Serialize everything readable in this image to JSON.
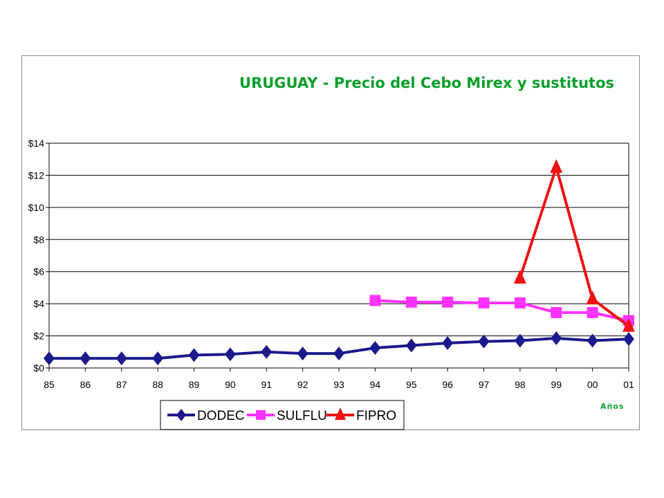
{
  "chart_data": {
    "type": "line",
    "title": "URUGUAY - Precio del Cebo Mirex y sustitutos",
    "xlabel": "Años",
    "ylabel": "",
    "categories": [
      "85",
      "86",
      "87",
      "88",
      "89",
      "90",
      "91",
      "92",
      "93",
      "94",
      "95",
      "96",
      "97",
      "98",
      "99",
      "00",
      "01"
    ],
    "yticks": [
      "$0",
      "$2",
      "$4",
      "$6",
      "$8",
      "$10",
      "$12",
      "$14"
    ],
    "ylim": [
      0,
      14
    ],
    "grid": true,
    "legend_position": "bottom",
    "series": [
      {
        "name": "DODEC",
        "color": "#1a1a8c",
        "marker": "diamond",
        "values": [
          0.6,
          0.6,
          0.6,
          0.6,
          0.8,
          0.85,
          1.0,
          0.9,
          0.9,
          1.25,
          1.4,
          1.55,
          1.65,
          1.7,
          1.85,
          1.7,
          1.8
        ]
      },
      {
        "name": "SULFLU",
        "color": "#ff33ff",
        "marker": "square",
        "values": [
          null,
          null,
          null,
          null,
          null,
          null,
          null,
          null,
          null,
          4.2,
          4.1,
          4.1,
          4.05,
          4.05,
          3.45,
          3.45,
          2.95
        ]
      },
      {
        "name": "FIPRO",
        "color": "#ee1111",
        "marker": "triangle",
        "values": [
          null,
          null,
          null,
          null,
          null,
          null,
          null,
          null,
          null,
          null,
          null,
          null,
          null,
          5.6,
          12.5,
          4.3,
          2.6
        ]
      }
    ]
  }
}
